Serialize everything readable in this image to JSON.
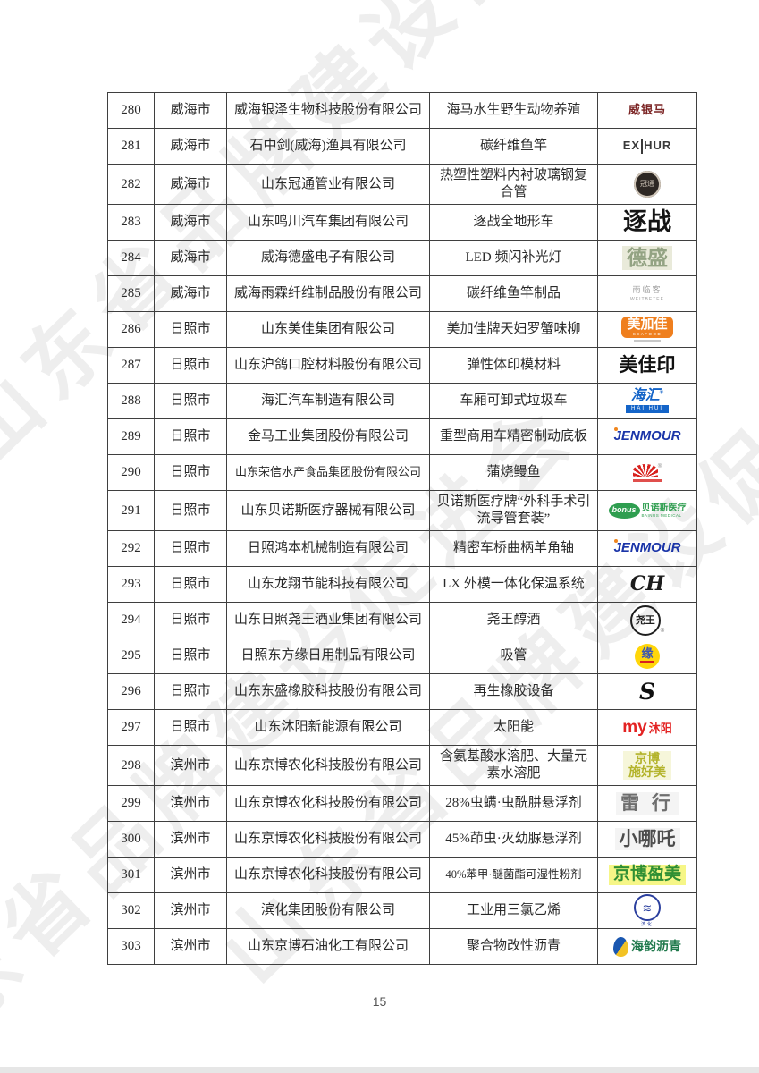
{
  "watermark": {
    "text": "山东省品牌建设促进会"
  },
  "footer": {
    "page_number": "15"
  },
  "table": {
    "rows": [
      {
        "no": "280",
        "city": "威海市",
        "company": "威海银泽生物科技股份有限公司",
        "product": "海马水生野生动物养殖",
        "logo": {
          "kind": "text",
          "text": "威银马",
          "color": "#7a2222",
          "size": 13,
          "weight": 700,
          "spacing": 1
        }
      },
      {
        "no": "281",
        "city": "威海市",
        "company": "石中剑(威海)渔具有限公司",
        "product": "碳纤维鱼竿",
        "logo": {
          "kind": "exthur",
          "left": "EX",
          "right": "HUR",
          "color": "#3a3a3a"
        }
      },
      {
        "no": "282",
        "city": "威海市",
        "company": "山东冠通管业有限公司",
        "product": "热塑性塑料内衬玻璃钢复合管",
        "tall": true,
        "logo": {
          "kind": "seal-dark",
          "text": "冠通",
          "bg": "#2d2723",
          "ring": "#cfc5b8"
        }
      },
      {
        "no": "283",
        "city": "威海市",
        "company": "山东鸣川汽车集团有限公司",
        "product": "逐战全地形车",
        "logo": {
          "kind": "text",
          "text": "逐战",
          "color": "#151515",
          "size": 27,
          "weight": 900
        }
      },
      {
        "no": "284",
        "city": "威海市",
        "company": "威海德盛电子有限公司",
        "product": "LED 频闪补光灯",
        "logo": {
          "kind": "text",
          "text": "德盛",
          "color": "#93a383",
          "size": 23,
          "weight": 700,
          "bg": "#e9eada"
        }
      },
      {
        "no": "285",
        "city": "威海市",
        "company": "威海雨霖纤维制品股份有限公司",
        "product": "碳纤维鱼竿制品",
        "logo": {
          "kind": "caption",
          "text": "雨临客",
          "sub": "WEITBETEE",
          "color": "#9c9c9c"
        }
      },
      {
        "no": "286",
        "city": "日照市",
        "company": "山东美佳集团有限公司",
        "product": "美加佳牌天妇罗蟹味柳",
        "logo": {
          "kind": "box",
          "text": "美加佳",
          "sub": "SEAFOOD",
          "bg": "#ef7f1e",
          "color": "#ffffff"
        }
      },
      {
        "no": "287",
        "city": "日照市",
        "company": "山东沪鸽口腔材料股份有限公司",
        "product": "弹性体印模材料",
        "logo": {
          "kind": "text",
          "text": "美佳印",
          "color": "#101010",
          "size": 21,
          "weight": 900
        }
      },
      {
        "no": "288",
        "city": "日照市",
        "company": "海汇汽车制造有限公司",
        "product": "车厢可卸式垃圾车",
        "logo": {
          "kind": "haihui",
          "text": "海汇",
          "sub": "HAI HUI",
          "color": "#1464c8",
          "reg": true
        }
      },
      {
        "no": "289",
        "city": "日照市",
        "company": "金马工业集团股份有限公司",
        "product": "重型商用车精密制动底板",
        "logo": {
          "kind": "jenmour",
          "text": "JENMOUR",
          "color": "#1b35a8",
          "dot": "#f0861e"
        }
      },
      {
        "no": "290",
        "city": "日照市",
        "company": "山东荣信水产食品集团股份有限公司",
        "product": "蒲烧鳗鱼",
        "logo": {
          "kind": "fan",
          "color": "#d8231f",
          "reg": true
        }
      },
      {
        "no": "291",
        "city": "日照市",
        "company": "山东贝诺斯医疗器械有限公司",
        "product": "贝诺斯医疗牌“外科手术引流导管套装”",
        "tall": true,
        "logo": {
          "kind": "bonus",
          "script": "bonus",
          "text": "贝诺斯医疗",
          "sub": "BAINUS MEDICAL",
          "color": "#2f9e50"
        }
      },
      {
        "no": "292",
        "city": "日照市",
        "company": "日照鸿本机械制造有限公司",
        "product": "精密车桥曲柄羊角轴",
        "logo": {
          "kind": "jenmour",
          "text": "JENMOUR",
          "color": "#1b35a8",
          "dot": "#f0861e"
        }
      },
      {
        "no": "293",
        "city": "日照市",
        "company": "山东龙翔节能科技有限公司",
        "product": "LX 外模一体化保温系统",
        "logo": {
          "kind": "text",
          "text": "CH",
          "color": "#1c1c1c",
          "size": 22,
          "weight": 700,
          "italic": true,
          "serif": true
        }
      },
      {
        "no": "294",
        "city": "日照市",
        "company": "山东日照尧王酒业集团有限公司",
        "product": "尧王醇酒",
        "logo": {
          "kind": "seal-ring",
          "text": "尧王",
          "color": "#1e1e1e",
          "reg": true
        }
      },
      {
        "no": "295",
        "city": "日照市",
        "company": "日照东方缘日用制品有限公司",
        "product": "吸管",
        "logo": {
          "kind": "yellow-circle",
          "text": "缘",
          "bg": "#ffd60a",
          "color": "#3a55b4",
          "bar": "#d82020"
        }
      },
      {
        "no": "296",
        "city": "日照市",
        "company": "山东东盛橡胶科技股份有限公司",
        "product": "再生橡胶设备",
        "logo": {
          "kind": "text",
          "text": "S",
          "color": "#101010",
          "size": 25,
          "weight": 900,
          "italic": true,
          "serif": true
        }
      },
      {
        "no": "297",
        "city": "日照市",
        "company": "山东沐阳新能源有限公司",
        "product": "太阳能",
        "logo": {
          "kind": "duo",
          "a": "my",
          "b": "沐阳",
          "color": "#e32222"
        }
      },
      {
        "no": "298",
        "city": "滨州市",
        "company": "山东京博农化科技股份有限公司",
        "product": "含氨基酸水溶肥、大量元素水溶肥",
        "tall": true,
        "logo": {
          "kind": "stack",
          "lines": [
            "京博",
            "施好美"
          ],
          "color": "#b3b32a",
          "bg": "#f6f6da",
          "size": 14
        }
      },
      {
        "no": "299",
        "city": "滨州市",
        "company": "山东京博农化科技股份有限公司",
        "product": "28%虫螨·虫酰肼悬浮剂",
        "logo": {
          "kind": "text",
          "text": "雷 行",
          "color": "#6e6e6e",
          "size": 21,
          "weight": 700,
          "bg": "#f4f4f4",
          "spacing": 4
        }
      },
      {
        "no": "300",
        "city": "滨州市",
        "company": "山东京博农化科技股份有限公司",
        "product": "45%茚虫·灭幼脲悬浮剂",
        "logo": {
          "kind": "text",
          "text": "小哪吒",
          "color": "#4c4c4c",
          "size": 21,
          "weight": 700,
          "bg": "#f4f4f4"
        }
      },
      {
        "no": "301",
        "city": "滨州市",
        "company": "山东京博农化科技股份有限公司",
        "product": "40%苯甲·醚菌酯可湿性粉剂",
        "productSmall": true,
        "logo": {
          "kind": "text",
          "text": "京博盈美",
          "color": "#2f8f33",
          "size": 19,
          "weight": 800,
          "bg": "#f6f687"
        }
      },
      {
        "no": "302",
        "city": "滨州市",
        "company": "滨化集团股份有限公司",
        "product": "工业用三氯乙烯",
        "logo": {
          "kind": "wave-circle",
          "glyph": "≋",
          "sub": "滨化",
          "color": "#2b3f9e"
        }
      },
      {
        "no": "303",
        "city": "滨州市",
        "company": "山东京博石油化工有限公司",
        "product": "聚合物改性沥青",
        "logo": {
          "kind": "drop",
          "text": "海韵沥青",
          "color": "#20794c",
          "dropA": "#1a57b0",
          "dropB": "#f2c224"
        }
      }
    ]
  }
}
